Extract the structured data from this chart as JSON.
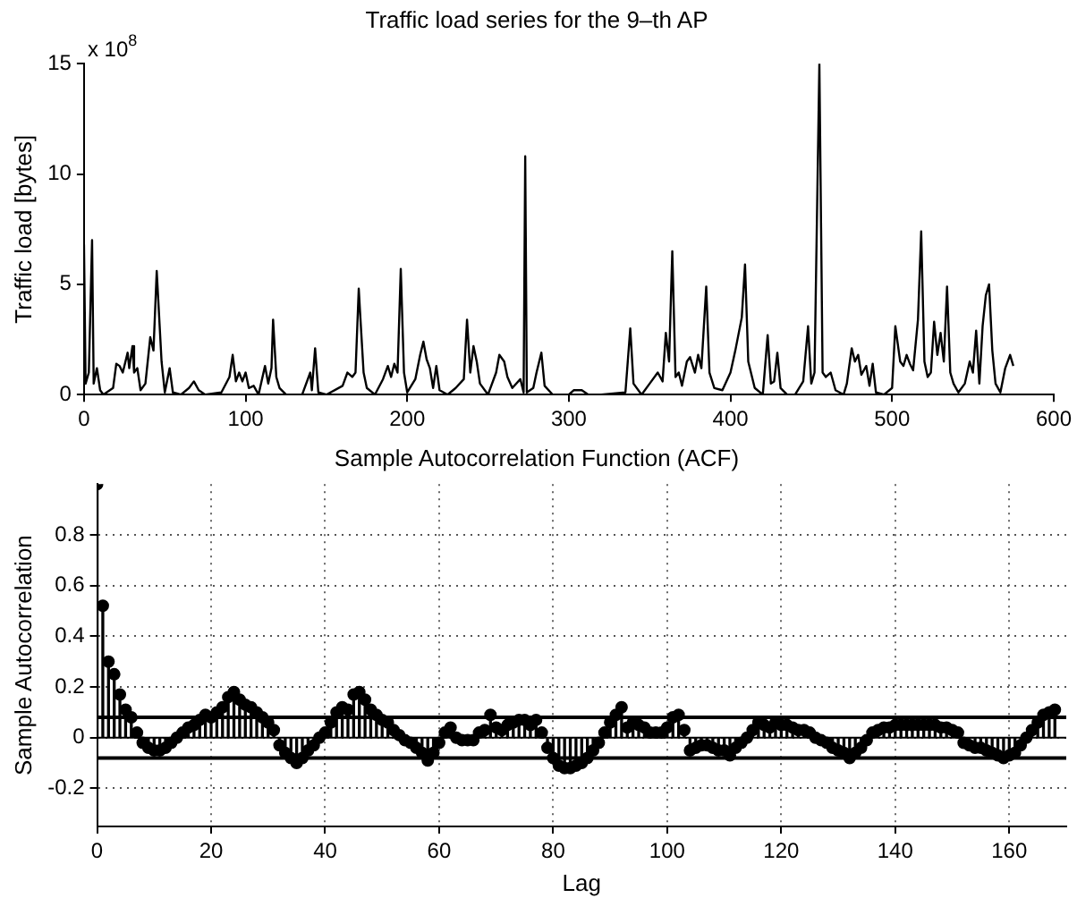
{
  "chart_data": [
    {
      "type": "line",
      "title": "Traffic load series for the 9–th AP",
      "ylabel": "Traffic load [bytes]",
      "annotations": [
        "x 10$^{8}$"
      ],
      "xlim": [
        0,
        600
      ],
      "xticks": [
        0,
        100,
        200,
        300,
        400,
        500,
        600
      ],
      "ylim": [
        0,
        15
      ],
      "yticks": [
        0,
        5,
        10,
        15
      ],
      "grid": false,
      "legend": false,
      "marker": "none",
      "line_style": "solid",
      "x": [
        0,
        1,
        3,
        5,
        6,
        8,
        10,
        12,
        18,
        20,
        22,
        24,
        27,
        28,
        30,
        31,
        33,
        35,
        38,
        41,
        43,
        45,
        48,
        50,
        53,
        55,
        60,
        65,
        68,
        71,
        75,
        85,
        90,
        92,
        94,
        96,
        98,
        100,
        102,
        105,
        108,
        112,
        114,
        116,
        117,
        119,
        121,
        125,
        135,
        140,
        141,
        143,
        145,
        150,
        160,
        163,
        166,
        168,
        170,
        171,
        173,
        175,
        180,
        185,
        188,
        190,
        192,
        194,
        196,
        198,
        200,
        205,
        208,
        210,
        212,
        214,
        216,
        218,
        220,
        225,
        230,
        235,
        237,
        239,
        241,
        243,
        245,
        250,
        255,
        257,
        260,
        262,
        265,
        270,
        272,
        273,
        274,
        278,
        280,
        283,
        285,
        290,
        300,
        303,
        308,
        312,
        320,
        335,
        338,
        340,
        345,
        350,
        355,
        358,
        360,
        362,
        364,
        366,
        368,
        370,
        373,
        375,
        378,
        380,
        382,
        385,
        387,
        390,
        395,
        400,
        403,
        407,
        409,
        411,
        415,
        420,
        423,
        425,
        427,
        429,
        431,
        435,
        440,
        445,
        448,
        450,
        452,
        455,
        457,
        459,
        462,
        465,
        470,
        472,
        475,
        477,
        479,
        481,
        484,
        486,
        488,
        490,
        495,
        500,
        502,
        505,
        507,
        509,
        511,
        513,
        516,
        518,
        520,
        522,
        524,
        526,
        528,
        530,
        532,
        534,
        536,
        538,
        541,
        545,
        548,
        550,
        552,
        554,
        556,
        558,
        560,
        562,
        564,
        567,
        570,
        573,
        575
      ],
      "series": [
        {
          "color": "#000000",
          "values": [
            6.8,
            0.5,
            1.0,
            7.0,
            0.5,
            1.2,
            0.2,
            0,
            0.3,
            1.4,
            1.3,
            1.0,
            1.9,
            1.2,
            2.2,
            1.0,
            1.2,
            0.2,
            0.5,
            2.6,
            2.0,
            5.6,
            1.5,
            0.1,
            1.2,
            0.1,
            0,
            0.3,
            0.6,
            0.2,
            0,
            0.1,
            0.8,
            1.8,
            0.6,
            1.0,
            0.6,
            1.0,
            0.3,
            0.4,
            0,
            1.3,
            0.5,
            1.2,
            3.4,
            0.8,
            0.3,
            0,
            0,
            1.0,
            0.2,
            2.1,
            0.1,
            0,
            0.4,
            1.0,
            0.8,
            1.0,
            4.8,
            3.5,
            1.0,
            0.3,
            0,
            0.7,
            1.3,
            0.8,
            1.4,
            1.0,
            5.7,
            1.0,
            0.1,
            0.7,
            1.8,
            2.4,
            1.6,
            1.2,
            0.3,
            1.3,
            0.2,
            0,
            0.3,
            0.7,
            3.4,
            1.0,
            2.2,
            1.5,
            0.5,
            0,
            1.0,
            1.8,
            1.5,
            0.8,
            0.3,
            0.7,
            0.1,
            10.8,
            0.1,
            0.3,
            1.0,
            1.9,
            0.4,
            0,
            0,
            0.2,
            0.2,
            0,
            0,
            0.1,
            3.0,
            0.5,
            0,
            0.5,
            1.0,
            0.6,
            2.8,
            1.5,
            6.5,
            0.8,
            1.0,
            0.4,
            1.5,
            1.7,
            1.0,
            1.8,
            1.2,
            4.9,
            1.0,
            0.3,
            0.2,
            1.0,
            2.0,
            3.5,
            5.9,
            1.5,
            0.3,
            0,
            2.7,
            0.5,
            0.6,
            1.9,
            0.3,
            0,
            0,
            0.6,
            3.1,
            0.5,
            1.0,
            15,
            1.0,
            0.8,
            1.0,
            0.2,
            0,
            0.5,
            2.1,
            1.5,
            1.8,
            0.9,
            1.3,
            0.4,
            1.4,
            0.1,
            0,
            0.3,
            3.1,
            1.5,
            1.3,
            1.8,
            1.4,
            1.1,
            3.4,
            7.4,
            1.5,
            0.8,
            1.0,
            3.3,
            1.8,
            2.8,
            1.5,
            4.9,
            1.0,
            0.5,
            0.1,
            0.5,
            1.5,
            1.0,
            2.9,
            0.5,
            3.1,
            4.5,
            5.0,
            2.0,
            0.5,
            0.1,
            1.2,
            1.8,
            1.3
          ]
        }
      ]
    },
    {
      "type": "lollipop",
      "title": "Sample Autocorrelation Function (ACF)",
      "xlabel": "Lag",
      "ylabel": "Sample Autocorrelation",
      "xlim": [
        0,
        170
      ],
      "xticks": [
        0,
        20,
        40,
        60,
        80,
        100,
        120,
        140,
        160
      ],
      "ylim": [
        -0.35,
        1
      ],
      "yticks": [
        -0.2,
        0,
        0.2,
        0.4,
        0.6,
        0.8
      ],
      "grid": true,
      "legend": false,
      "marker": "circle",
      "ref_lines": [
        {
          "axis": "y",
          "value": 0.08,
          "color": "#000000"
        },
        {
          "axis": "y",
          "value": -0.08,
          "color": "#000000"
        },
        {
          "axis": "y",
          "value": 0,
          "color": "#000000"
        }
      ],
      "x": [
        0,
        1,
        2,
        3,
        4,
        5,
        6,
        7,
        8,
        9,
        10,
        11,
        12,
        13,
        14,
        15,
        16,
        17,
        18,
        19,
        20,
        21,
        22,
        23,
        24,
        25,
        26,
        27,
        28,
        29,
        30,
        31,
        32,
        33,
        34,
        35,
        36,
        37,
        38,
        39,
        40,
        41,
        42,
        43,
        44,
        45,
        46,
        47,
        48,
        49,
        50,
        51,
        52,
        53,
        54,
        55,
        56,
        57,
        58,
        59,
        60,
        61,
        62,
        63,
        64,
        65,
        66,
        67,
        68,
        69,
        70,
        71,
        72,
        73,
        74,
        75,
        76,
        77,
        78,
        79,
        80,
        81,
        82,
        83,
        84,
        85,
        86,
        87,
        88,
        89,
        90,
        91,
        92,
        93,
        94,
        95,
        96,
        97,
        98,
        99,
        100,
        101,
        102,
        103,
        104,
        105,
        106,
        107,
        108,
        109,
        110,
        111,
        112,
        113,
        114,
        115,
        116,
        117,
        118,
        119,
        120,
        121,
        122,
        123,
        124,
        125,
        126,
        127,
        128,
        129,
        130,
        131,
        132,
        133,
        134,
        135,
        136,
        137,
        138,
        139,
        140,
        141,
        142,
        143,
        144,
        145,
        146,
        147,
        148,
        149,
        150,
        151,
        152,
        153,
        154,
        155,
        156,
        157,
        158,
        159,
        160,
        161,
        162,
        163,
        164,
        165,
        166,
        167,
        168
      ],
      "series": [
        {
          "color": "#000000",
          "values": [
            1.0,
            0.52,
            0.3,
            0.25,
            0.17,
            0.11,
            0.08,
            0.02,
            -0.02,
            -0.04,
            -0.05,
            -0.05,
            -0.04,
            -0.02,
            0.0,
            0.02,
            0.04,
            0.05,
            0.07,
            0.09,
            0.08,
            0.1,
            0.12,
            0.16,
            0.18,
            0.15,
            0.13,
            0.12,
            0.1,
            0.08,
            0.06,
            0.03,
            -0.03,
            -0.06,
            -0.08,
            -0.1,
            -0.08,
            -0.05,
            -0.03,
            0.0,
            0.02,
            0.06,
            0.1,
            0.12,
            0.11,
            0.17,
            0.18,
            0.15,
            0.11,
            0.09,
            0.07,
            0.06,
            0.03,
            0.01,
            -0.01,
            -0.02,
            -0.04,
            -0.06,
            -0.09,
            -0.06,
            -0.02,
            0.02,
            0.04,
            0.0,
            -0.01,
            -0.01,
            -0.01,
            0.02,
            0.03,
            0.09,
            0.04,
            0.03,
            0.05,
            0.06,
            0.07,
            0.07,
            0.05,
            0.07,
            0.02,
            -0.04,
            -0.08,
            -0.11,
            -0.12,
            -0.12,
            -0.11,
            -0.1,
            -0.08,
            -0.05,
            -0.02,
            0.02,
            0.06,
            0.09,
            0.12,
            0.04,
            0.06,
            0.05,
            0.04,
            0.02,
            0.02,
            0.02,
            0.04,
            0.08,
            0.09,
            0.03,
            -0.05,
            -0.04,
            -0.03,
            -0.03,
            -0.04,
            -0.05,
            -0.05,
            -0.07,
            -0.04,
            -0.02,
            0.0,
            0.03,
            0.06,
            0.05,
            0.04,
            0.06,
            0.05,
            0.05,
            0.04,
            0.03,
            0.03,
            0.02,
            0.0,
            -0.01,
            -0.02,
            -0.04,
            -0.05,
            -0.06,
            -0.08,
            -0.06,
            -0.04,
            -0.01,
            0.02,
            0.03,
            0.04,
            0.04,
            0.05,
            0.05,
            0.05,
            0.05,
            0.05,
            0.05,
            0.05,
            0.05,
            0.04,
            0.04,
            0.03,
            0.02,
            -0.02,
            -0.03,
            -0.04,
            -0.04,
            -0.05,
            -0.06,
            -0.07,
            -0.08,
            -0.07,
            -0.06,
            -0.03,
            0.0,
            0.03,
            0.06,
            0.09,
            0.1,
            0.11
          ]
        }
      ]
    }
  ]
}
